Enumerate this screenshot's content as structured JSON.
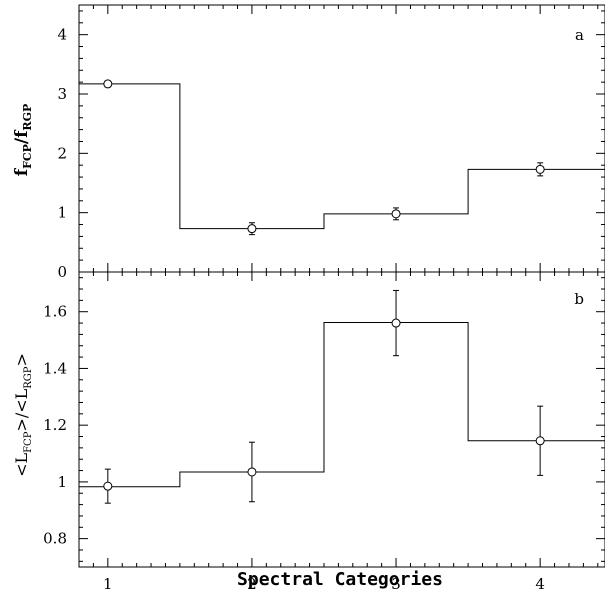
{
  "chart_data": [
    {
      "panel": "a",
      "type": "step",
      "ylabel": {
        "main": "f",
        "sub": "FCP",
        "sep": "/f",
        "sub2": "RGP"
      },
      "xlim": [
        0.8,
        4.45
      ],
      "ylim": [
        0,
        4.5
      ],
      "yticks": [
        0,
        1,
        2,
        3,
        4
      ],
      "xticks": [
        1,
        2,
        3,
        4
      ],
      "show_xticklabels": false,
      "step": [
        {
          "x0": 0.8,
          "x1": 1.5,
          "y": 3.17
        },
        {
          "x0": 1.5,
          "x1": 2.5,
          "y": 0.73
        },
        {
          "x0": 2.5,
          "x1": 3.5,
          "y": 0.98
        },
        {
          "x0": 3.5,
          "x1": 4.45,
          "y": 1.73
        }
      ],
      "points": [
        {
          "x": 1,
          "y": 3.17,
          "err": 0.05
        },
        {
          "x": 2,
          "y": 0.73,
          "err": 0.1
        },
        {
          "x": 3,
          "y": 0.98,
          "err": 0.1
        },
        {
          "x": 4,
          "y": 1.73,
          "err": 0.11
        }
      ]
    },
    {
      "panel": "b",
      "type": "step",
      "ylabel": {
        "main": "<L",
        "sub": "FCP",
        "sep": ">/<L",
        "sub2": "RGP",
        "end": ">"
      },
      "xlim": [
        0.8,
        4.45
      ],
      "ylim": [
        0.7,
        1.74
      ],
      "yticks": [
        0.8,
        1,
        1.2,
        1.4,
        1.6
      ],
      "xticks": [
        1,
        2,
        3,
        4
      ],
      "show_xticklabels": true,
      "step": [
        {
          "x0": 0.8,
          "x1": 1.5,
          "y": 0.983
        },
        {
          "x0": 1.5,
          "x1": 2.5,
          "y": 1.035
        },
        {
          "x0": 2.5,
          "x1": 3.5,
          "y": 1.562
        },
        {
          "x0": 3.5,
          "x1": 4.45,
          "y": 1.145
        }
      ],
      "points": [
        {
          "x": 1,
          "y": 0.985,
          "err": 0.06
        },
        {
          "x": 2,
          "y": 1.035,
          "err": 0.105
        },
        {
          "x": 3,
          "y": 1.56,
          "err": 0.115
        },
        {
          "x": 4,
          "y": 1.145,
          "err": 0.122
        }
      ]
    }
  ],
  "xlabel": "Spectral Categories",
  "panel_labels": [
    "a",
    "b"
  ],
  "tick_labels": {
    "a_y": [
      "0",
      "1",
      "2",
      "3",
      "4"
    ],
    "b_y": [
      "0.8",
      "1",
      "1.2",
      "1.4",
      "1.6"
    ],
    "x": [
      "1",
      "2",
      "3",
      "4"
    ]
  },
  "colors": {
    "line": "#000000",
    "background": "#ffffff"
  }
}
